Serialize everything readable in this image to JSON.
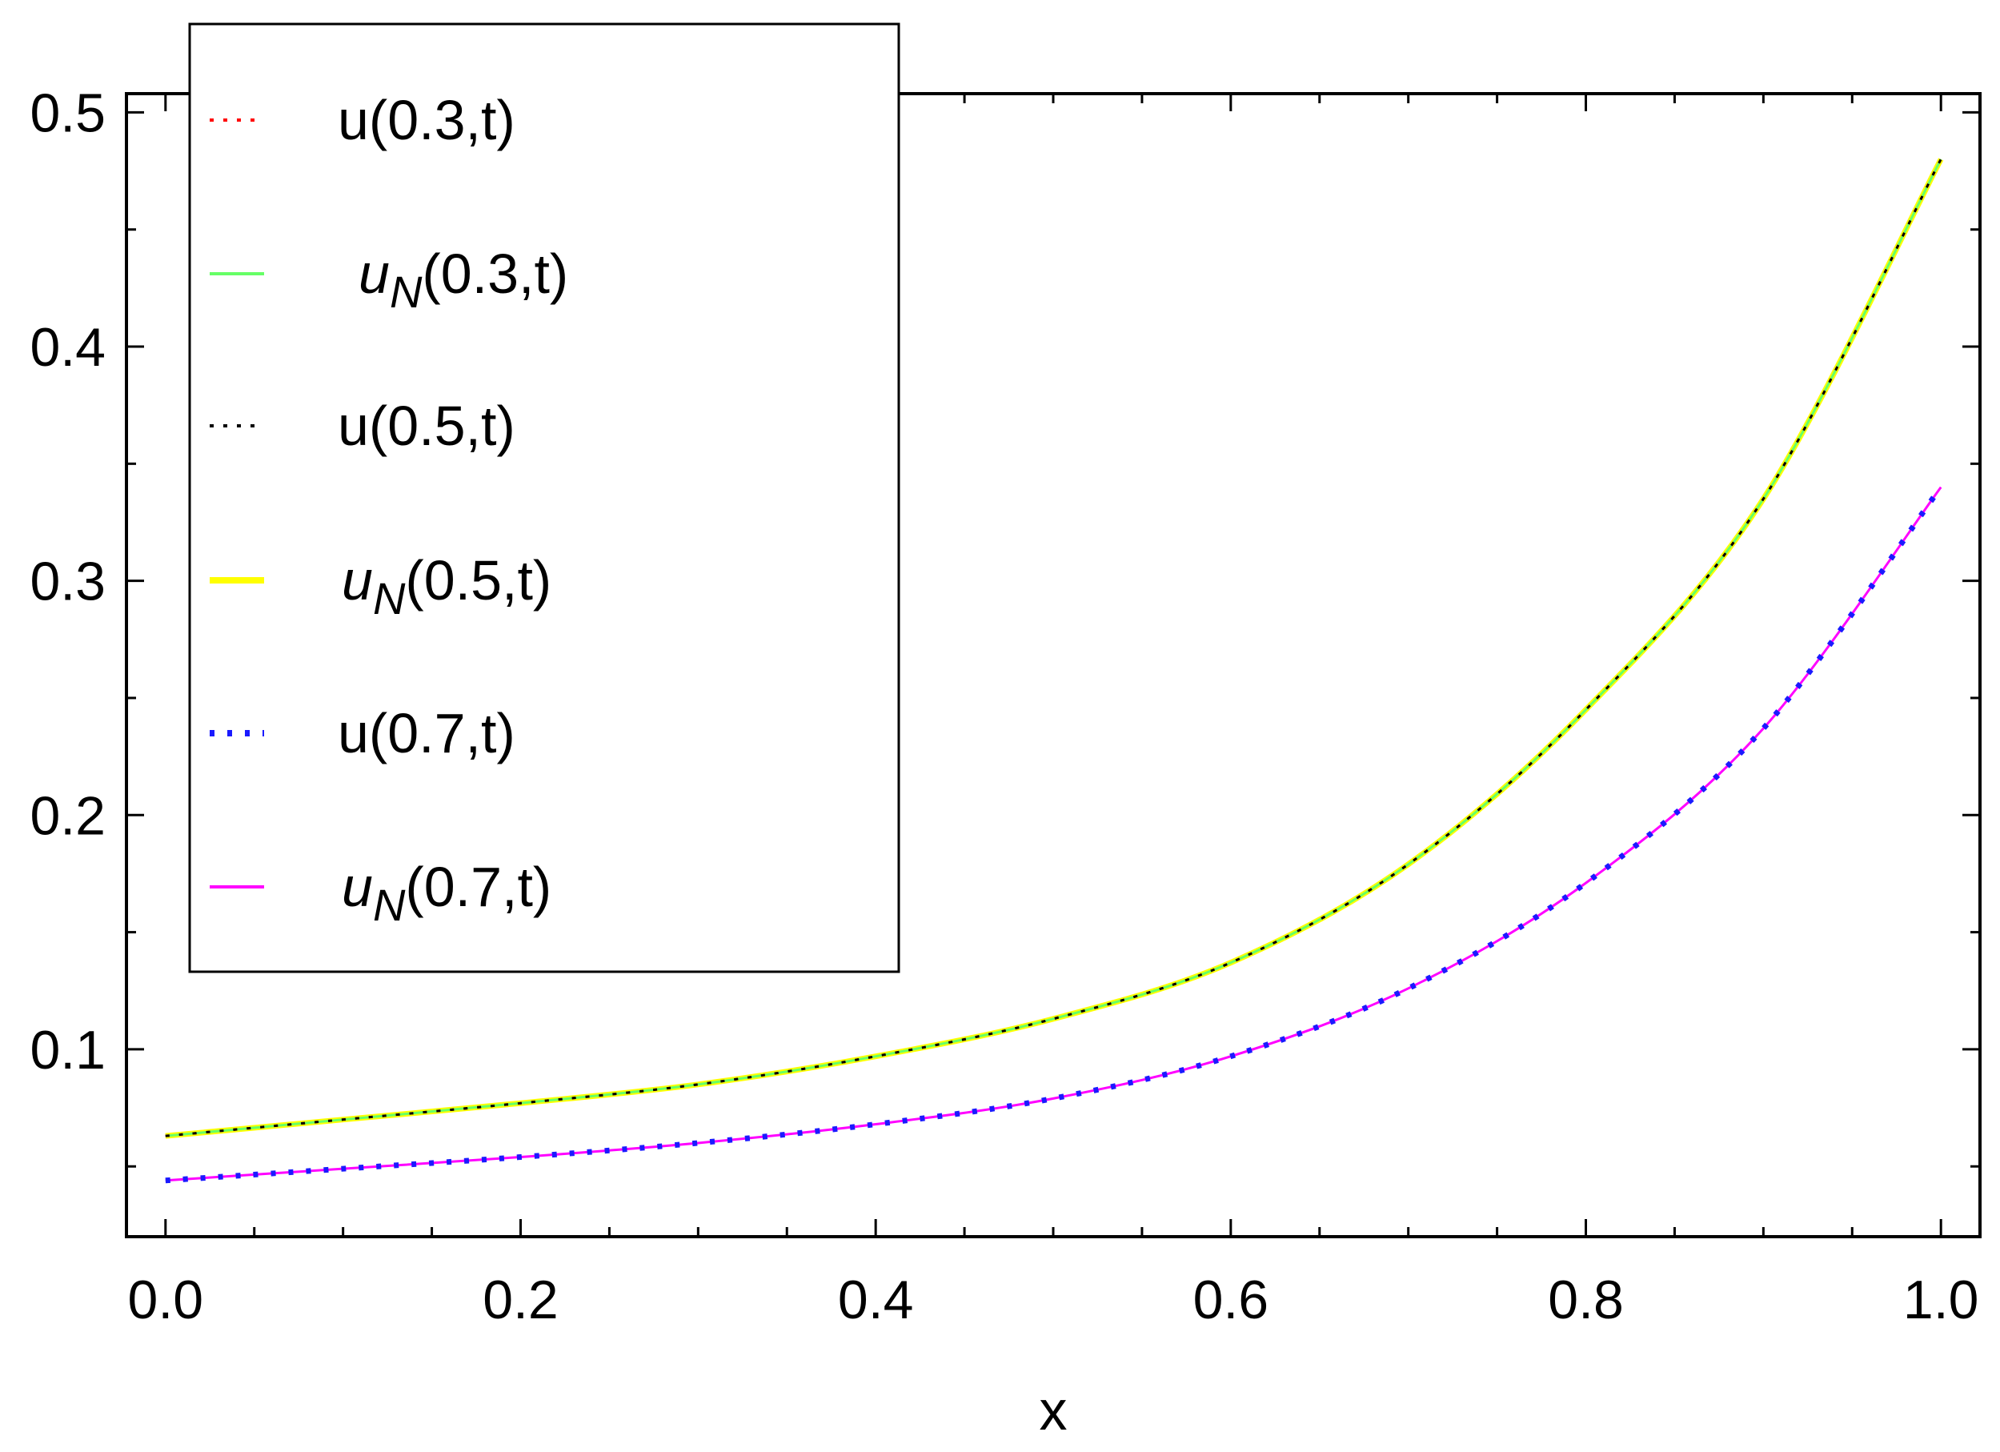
{
  "chart_data": {
    "type": "line",
    "xlabel": "x",
    "ylabel": "",
    "title": "",
    "xlim": [
      -0.022,
      1.022
    ],
    "ylim": [
      0.02,
      0.508
    ],
    "xticks": [
      0.0,
      0.2,
      0.4,
      0.6,
      0.8,
      1.0
    ],
    "xtick_labels": [
      "0.0",
      "0.2",
      "0.4",
      "0.6",
      "0.8",
      "1.0"
    ],
    "yticks": [
      0.1,
      0.2,
      0.3,
      0.4,
      0.5
    ],
    "ytick_labels": [
      "0.1",
      "0.2",
      "0.3",
      "0.4",
      "0.5"
    ],
    "grid": false,
    "legend_position": "top-left",
    "x": [
      0.0,
      0.1,
      0.2,
      0.3,
      0.4,
      0.5,
      0.6,
      0.7,
      0.8,
      0.9,
      1.0
    ],
    "series": [
      {
        "name": "u(0.3,t)",
        "color": "#ff0000",
        "style": "dotted",
        "values": [
          0.063,
          0.07,
          0.077,
          0.085,
          0.097,
          0.113,
          0.137,
          0.179,
          0.245,
          0.335,
          0.48
        ]
      },
      {
        "name": "u_N(0.3,t)",
        "color": "#66ff66",
        "style": "solid-thin",
        "values": [
          0.063,
          0.07,
          0.077,
          0.085,
          0.097,
          0.113,
          0.137,
          0.179,
          0.245,
          0.335,
          0.48
        ]
      },
      {
        "name": "u(0.5,t)",
        "color": "#000000",
        "style": "dotted",
        "values": [
          0.063,
          0.07,
          0.077,
          0.085,
          0.097,
          0.113,
          0.137,
          0.179,
          0.245,
          0.335,
          0.48
        ]
      },
      {
        "name": "u_N(0.5,t)",
        "color": "#ffff00",
        "style": "solid-thick",
        "values": [
          0.063,
          0.07,
          0.077,
          0.085,
          0.097,
          0.113,
          0.137,
          0.179,
          0.245,
          0.335,
          0.48
        ]
      },
      {
        "name": "u(0.7,t)",
        "color": "#1a1aff",
        "style": "dotted-thick",
        "values": [
          0.044,
          0.049,
          0.054,
          0.06,
          0.068,
          0.079,
          0.097,
          0.126,
          0.171,
          0.237,
          0.34
        ]
      },
      {
        "name": "u_N(0.7,t)",
        "color": "#ff00ff",
        "style": "solid-thin",
        "values": [
          0.044,
          0.049,
          0.054,
          0.06,
          0.068,
          0.079,
          0.097,
          0.126,
          0.171,
          0.237,
          0.34
        ]
      }
    ]
  },
  "legend": {
    "items": [
      {
        "label": "u(0.3,t)",
        "italic_prefix": "",
        "rest": "u(0.3,t)",
        "color": "#ff0000",
        "style": "dotted"
      },
      {
        "label": "uN(0.3,t)",
        "italic_prefix": "u",
        "sub": "N",
        "rest": "(0.3,t)",
        "color": "#66ff66",
        "style": "solid-thin"
      },
      {
        "label": "u(0.5,t)",
        "italic_prefix": "",
        "rest": "u(0.5,t)",
        "color": "#000000",
        "style": "dotted"
      },
      {
        "label": "uN(0.5,t)",
        "italic_prefix": "u",
        "sub": "N",
        "rest": "(0.5,t)",
        "color": "#ffff00",
        "style": "solid-thick"
      },
      {
        "label": "u(0.7,t)",
        "italic_prefix": "",
        "rest": "u(0.7,t)",
        "color": "#1a1aff",
        "style": "dotted-thick"
      },
      {
        "label": "uN(0.7,t)",
        "italic_prefix": "u",
        "sub": "N",
        "rest": "(0.7,t)",
        "color": "#ff00ff",
        "style": "solid-thin"
      }
    ]
  }
}
